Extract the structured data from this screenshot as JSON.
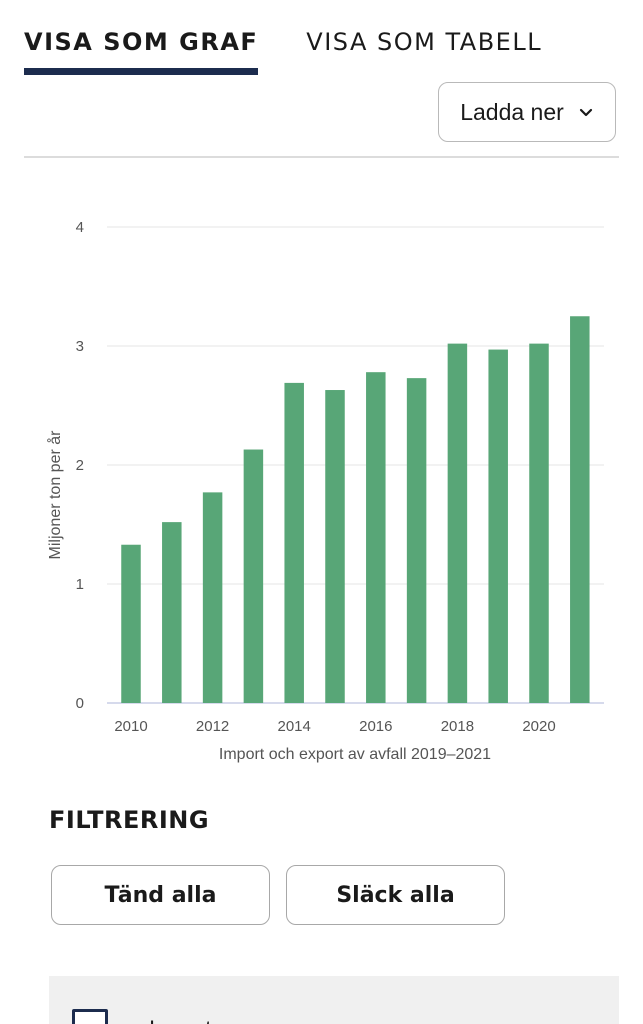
{
  "tabs": {
    "graph": "VISA SOM GRAF",
    "table": "VISA SOM TABELL"
  },
  "download": {
    "label": "Ladda ner",
    "icon": "chevron-down-icon"
  },
  "filter": {
    "title": "FILTRERING",
    "turn_on_all": "Tänd alla",
    "turn_off_all": "Släck alla",
    "series": [
      {
        "label": "Import",
        "checked": true
      }
    ]
  },
  "colors": {
    "bar": "#58a677",
    "tab_underline": "#1c2c4e",
    "axis_text": "#555555",
    "grid": "#e6e6e6"
  },
  "chart_data": {
    "type": "bar",
    "x": [
      2010,
      2011,
      2012,
      2013,
      2014,
      2015,
      2016,
      2017,
      2018,
      2019,
      2020,
      2021
    ],
    "values": [
      1.33,
      1.52,
      1.77,
      2.13,
      2.69,
      2.63,
      2.78,
      2.73,
      3.02,
      2.97,
      3.02,
      3.25
    ],
    "xticks": [
      "2010",
      "2012",
      "2014",
      "2016",
      "2018",
      "2020"
    ],
    "yticks": [
      "0",
      "1",
      "2",
      "3",
      "4"
    ],
    "ylim": [
      0,
      4
    ],
    "ylabel": "Miljoner ton per år",
    "xlabel": "Import och export av avfall 2019–2021",
    "grid": true
  }
}
